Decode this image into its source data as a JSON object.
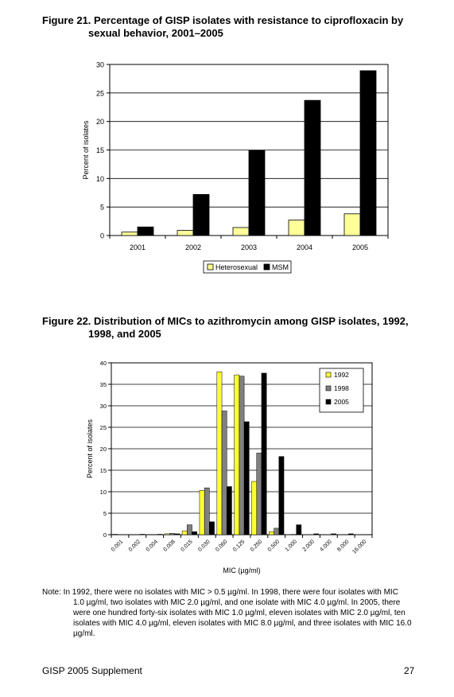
{
  "figure21": {
    "title_line1": "Figure 21. Percentage of GISP isolates with resistance to ciprofloxacin by",
    "title_line2": "sexual behavior, 2001–2005"
  },
  "figure22": {
    "title_line1": "Figure 22. Distribution of MICs to azithromycin among GISP isolates, 1992,",
    "title_line2": "1998, and 2005"
  },
  "note": {
    "first": "Note: In 1992, there were no isolates with MIC > 0.5 µg/ml. In 1998, there were four isolates with MIC",
    "rest": "1.0 µg/ml, two isolates with MIC 2.0 µg/ml, and one isolate with MIC 4.0 µg/ml. In 2005, there were one hundred forty-six isolates with MIC 1.0 µg/ml, eleven isolates with MIC 2.0 µg/ml, ten isolates with MIC 4.0 µg/ml, eleven isolates with MIC 8.0 µg/ml, and three isolates with MIC 16.0 µg/ml."
  },
  "footer": {
    "left": "GISP 2005 Supplement",
    "right": "27"
  },
  "colors": {
    "heterosexual": "#ffff99",
    "msm": "#000000",
    "y1992": "#ffff33",
    "y1998": "#808080",
    "y2005": "#000000"
  },
  "chart_data": [
    {
      "type": "bar",
      "title": "Figure 21. Percentage of GISP isolates with resistance to ciprofloxacin by sexual behavior, 2001–2005",
      "categories": [
        "2001",
        "2002",
        "2003",
        "2004",
        "2005"
      ],
      "series": [
        {
          "name": "Heterosexual",
          "values": [
            0.6,
            0.9,
            1.4,
            2.7,
            3.8
          ]
        },
        {
          "name": "MSM",
          "values": [
            1.5,
            7.2,
            14.9,
            23.7,
            28.9
          ]
        }
      ],
      "xlabel": "",
      "ylabel": "Percent of isolates",
      "ylim": [
        0,
        30
      ],
      "yticks": [
        "0",
        "5",
        "10",
        "15",
        "20",
        "25",
        "30"
      ],
      "legend": "bottom",
      "grid": true
    },
    {
      "type": "bar",
      "title": "Figure 22. Distribution of MICs to azithromycin among GISP isolates, 1992, 1998, and 2005",
      "categories": [
        "0.001",
        "0.002",
        "0.004",
        "0.008",
        "0.015",
        "0.030",
        "0.060",
        "0.125",
        "0.250",
        "0.500",
        "1.000",
        "2.000",
        "4.000",
        "8.000",
        "16.000"
      ],
      "series": [
        {
          "name": "1992",
          "values": [
            0.1,
            0.05,
            0.05,
            0.2,
            0.9,
            10.3,
            37.9,
            37.2,
            12.4,
            0.7,
            0,
            0,
            0,
            0,
            0
          ]
        },
        {
          "name": "1998",
          "values": [
            0,
            0,
            0.05,
            0.3,
            2.3,
            10.9,
            28.8,
            36.9,
            19.0,
            1.5,
            0.07,
            0.04,
            0.02,
            0,
            0
          ]
        },
        {
          "name": "2005",
          "values": [
            0,
            0.1,
            0.1,
            0.2,
            0.7,
            3.0,
            11.2,
            26.3,
            37.6,
            18.2,
            2.3,
            0.2,
            0.2,
            0.2,
            0.05
          ]
        }
      ],
      "xlabel": "MIC (µg/ml)",
      "ylabel": "Percent of isolates",
      "ylim": [
        0,
        40
      ],
      "yticks": [
        "0",
        "5",
        "10",
        "15",
        "20",
        "25",
        "30",
        "35",
        "40"
      ],
      "legend": "top-right",
      "grid": true
    }
  ]
}
